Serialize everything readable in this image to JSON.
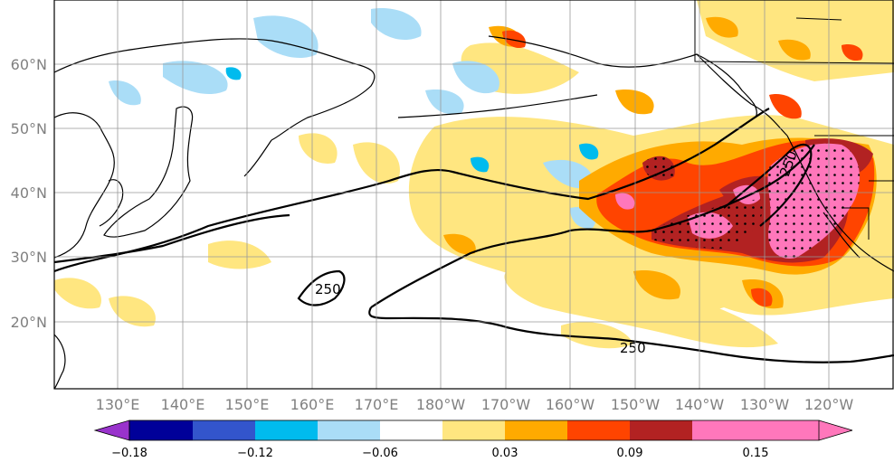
{
  "map": {
    "lon_labels": [
      "130°E",
      "140°E",
      "150°E",
      "160°E",
      "170°E",
      "180°W",
      "170°W",
      "160°W",
      "150°W",
      "140°W",
      "130°W",
      "120°W"
    ],
    "lat_labels": [
      "60°N",
      "50°N",
      "40°N",
      "30°N",
      "20°N"
    ],
    "contour_labels": [
      "250",
      "250",
      "250"
    ]
  },
  "colorbar": {
    "colors": [
      "#9933cc",
      "#000099",
      "#3355cc",
      "#00bbee",
      "#aaddf7",
      "#ffffff",
      "#ffe680",
      "#ffaa00",
      "#ff4400",
      "#b22222",
      "#ff77bb"
    ],
    "tick_labels": [
      "−0.18",
      "−0.12",
      "−0.06",
      "0.03",
      "0.09",
      "0.15"
    ]
  }
}
